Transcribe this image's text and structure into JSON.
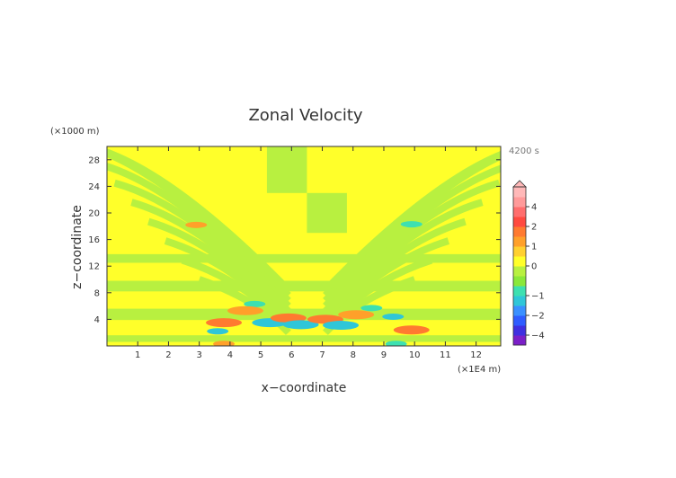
{
  "chart_data": {
    "type": "heatmap",
    "title": "Zonal Velocity",
    "xlabel": "x−coordinate",
    "ylabel": "z−coordinate",
    "x_unit_label": "(×1E4 m)",
    "y_unit_label": "(×1000 m)",
    "time_label": "4200 s",
    "xlim": [
      0,
      12.8
    ],
    "ylim": [
      0,
      30
    ],
    "x_ticks": [
      "1",
      "2",
      "3",
      "4",
      "5",
      "6",
      "7",
      "8",
      "9",
      "10",
      "11",
      "12"
    ],
    "y_ticks": [
      "4",
      "8",
      "12",
      "16",
      "20",
      "24",
      "28"
    ],
    "colorbar": {
      "tick_labels": [
        "4",
        "2",
        "1",
        "0",
        "−1",
        "−2",
        "−4"
      ],
      "tick_values": [
        4,
        2,
        1,
        0,
        -1,
        -2,
        -4
      ],
      "levels": [
        -5,
        -4,
        -3,
        -2,
        -1.5,
        -1,
        -0.5,
        -0.25,
        0,
        0.5,
        1,
        1.5,
        2,
        3,
        4,
        5
      ],
      "colors": [
        "#7b1fc8",
        "#3f2fe0",
        "#2f5cff",
        "#3a90ff",
        "#2fc6d8",
        "#3de0b0",
        "#8ae83a",
        "#b8f040",
        "#ffff2a",
        "#ffd030",
        "#ffa02a",
        "#ff7a30",
        "#ff4a40",
        "#ff6e6e",
        "#ff9a9a",
        "#ffb8b8"
      ]
    },
    "features": [
      {
        "x": 6.5,
        "z": 25,
        "value": 0.6,
        "shape": "quadrant-pattern"
      },
      {
        "x": 2.9,
        "z": 18.2,
        "value": 1.2
      },
      {
        "x": 9.9,
        "z": 18.3,
        "value": -1.0
      },
      {
        "x": 3.8,
        "z": 3.5,
        "value": 1.5
      },
      {
        "x": 3.6,
        "z": 2.2,
        "value": -1.3
      },
      {
        "x": 4.8,
        "z": 6.3,
        "value": -1.0
      },
      {
        "x": 4.5,
        "z": 5.3,
        "value": 1.4
      },
      {
        "x": 5.3,
        "z": 3.5,
        "value": -1.5
      },
      {
        "x": 5.9,
        "z": 4.2,
        "value": 1.6
      },
      {
        "x": 6.3,
        "z": 3.2,
        "value": -1.4
      },
      {
        "x": 7.1,
        "z": 4.0,
        "value": 1.6
      },
      {
        "x": 7.6,
        "z": 3.1,
        "value": -1.5
      },
      {
        "x": 8.1,
        "z": 4.7,
        "value": 1.4
      },
      {
        "x": 8.6,
        "z": 5.7,
        "value": -1.0
      },
      {
        "x": 9.3,
        "z": 4.4,
        "value": -1.2
      },
      {
        "x": 9.9,
        "z": 2.4,
        "value": 1.6
      },
      {
        "x": 3.8,
        "z": 0.3,
        "value": 1.2
      },
      {
        "x": 9.4,
        "z": 0.3,
        "value": -1.0
      }
    ]
  }
}
